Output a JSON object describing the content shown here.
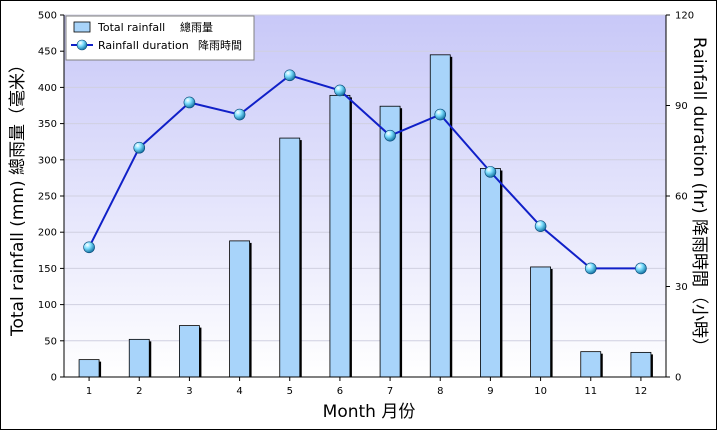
{
  "chart_data": {
    "type": "bar+line",
    "categories": [
      "1",
      "2",
      "3",
      "4",
      "5",
      "6",
      "7",
      "8",
      "9",
      "10",
      "11",
      "12"
    ],
    "series": [
      {
        "name": "Total rainfall",
        "name_zh": "總雨量",
        "kind": "bar",
        "axis": "left",
        "values": [
          24,
          52,
          71,
          188,
          330,
          389,
          374,
          445,
          288,
          152,
          35,
          34
        ],
        "color": "#a8d4fa"
      },
      {
        "name": "Rainfall duration",
        "name_zh": "降雨時間",
        "kind": "line",
        "axis": "right",
        "values": [
          43,
          76,
          91,
          87,
          100,
          95,
          80,
          87,
          68,
          50,
          36,
          36
        ],
        "color": "#1020c8"
      }
    ],
    "xlabel": "Month 月份",
    "ylabel_left": "Total rainfall (mm) 總雨量（毫米）",
    "ylabel_right": "Rainfall duration (hr) 降雨時間（小時）",
    "ylim_left": [
      0,
      500
    ],
    "ylim_right": [
      0,
      120
    ],
    "yticks_left": [
      "0",
      "50",
      "100",
      "150",
      "200",
      "250",
      "300",
      "350",
      "400",
      "450",
      "500"
    ],
    "yticks_right": [
      "0",
      "30",
      "60",
      "90",
      "120"
    ],
    "grid": true,
    "legend_position": "top-left",
    "background_gradient": [
      "#ffffff",
      "#c8c8f8"
    ]
  }
}
